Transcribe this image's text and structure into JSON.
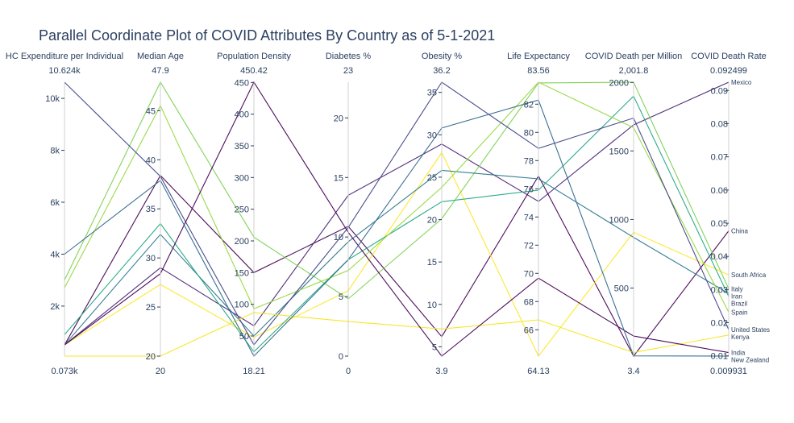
{
  "title": "Parallel Coordinate Plot of COVID Attributes By Country as of 5-1-2021",
  "chart_data": {
    "type": "parallel_coordinates",
    "axes": [
      {
        "key": "hc",
        "label": "HC Expenditure per Individual",
        "min": 73,
        "max": 10624,
        "range_min_label": "0.073k",
        "range_max_label": "10.624k",
        "ticks": [
          {
            "v": 2000,
            "t": "2k"
          },
          {
            "v": 4000,
            "t": "4k"
          },
          {
            "v": 6000,
            "t": "6k"
          },
          {
            "v": 8000,
            "t": "8k"
          },
          {
            "v": 10000,
            "t": "10k"
          }
        ]
      },
      {
        "key": "age",
        "label": "Median Age",
        "min": 20,
        "max": 47.9,
        "range_min_label": "20",
        "range_max_label": "47.9",
        "ticks": [
          {
            "v": 20,
            "t": "20"
          },
          {
            "v": 25,
            "t": "25"
          },
          {
            "v": 30,
            "t": "30"
          },
          {
            "v": 35,
            "t": "35"
          },
          {
            "v": 40,
            "t": "40"
          },
          {
            "v": 45,
            "t": "45"
          }
        ]
      },
      {
        "key": "density",
        "label": "Population Density",
        "min": 18.21,
        "max": 450.42,
        "range_min_label": "18.21",
        "range_max_label": "450.42",
        "ticks": [
          {
            "v": 50,
            "t": "50"
          },
          {
            "v": 100,
            "t": "100"
          },
          {
            "v": 150,
            "t": "150"
          },
          {
            "v": 200,
            "t": "200"
          },
          {
            "v": 250,
            "t": "250"
          },
          {
            "v": 300,
            "t": "300"
          },
          {
            "v": 350,
            "t": "350"
          },
          {
            "v": 400,
            "t": "400"
          },
          {
            "v": 450,
            "t": "450"
          }
        ]
      },
      {
        "key": "diabetes",
        "label": "Diabetes %",
        "min": 0,
        "max": 23,
        "range_min_label": "0",
        "range_max_label": "23",
        "ticks": [
          {
            "v": 0,
            "t": "0"
          },
          {
            "v": 5,
            "t": "5"
          },
          {
            "v": 10,
            "t": "10"
          },
          {
            "v": 15,
            "t": "15"
          },
          {
            "v": 20,
            "t": "20"
          }
        ]
      },
      {
        "key": "obesity",
        "label": "Obesity %",
        "min": 3.9,
        "max": 36.2,
        "range_min_label": "3.9",
        "range_max_label": "36.2",
        "ticks": [
          {
            "v": 5,
            "t": "5"
          },
          {
            "v": 10,
            "t": "10"
          },
          {
            "v": 15,
            "t": "15"
          },
          {
            "v": 20,
            "t": "20"
          },
          {
            "v": 25,
            "t": "25"
          },
          {
            "v": 30,
            "t": "30"
          },
          {
            "v": 35,
            "t": "35"
          }
        ]
      },
      {
        "key": "life",
        "label": "Life Expectancy",
        "min": 64.13,
        "max": 83.56,
        "range_min_label": "64.13",
        "range_max_label": "83.56",
        "ticks": [
          {
            "v": 66,
            "t": "66"
          },
          {
            "v": 68,
            "t": "68"
          },
          {
            "v": 70,
            "t": "70"
          },
          {
            "v": 72,
            "t": "72"
          },
          {
            "v": 74,
            "t": "74"
          },
          {
            "v": 76,
            "t": "76"
          },
          {
            "v": 78,
            "t": "78"
          },
          {
            "v": 80,
            "t": "80"
          },
          {
            "v": 82,
            "t": "82"
          }
        ]
      },
      {
        "key": "deathpm",
        "label": "COVID Death per Million",
        "min": 3.4,
        "max": 2001.8,
        "range_min_label": "3.4",
        "range_max_label": "2,001.8",
        "ticks": [
          {
            "v": 500,
            "t": "500"
          },
          {
            "v": 1000,
            "t": "1000"
          },
          {
            "v": 1500,
            "t": "1500"
          },
          {
            "v": 2000,
            "t": "2000"
          }
        ]
      },
      {
        "key": "deathrate",
        "label": "COVID Death Rate",
        "min": 0.009931,
        "max": 0.092499,
        "range_min_label": "0.009931",
        "range_max_label": "0.092499",
        "ticks": [
          {
            "v": 0.01,
            "t": "0.01"
          },
          {
            "v": 0.02,
            "t": "0.02"
          },
          {
            "v": 0.03,
            "t": "0.03"
          },
          {
            "v": 0.04,
            "t": "0.04"
          },
          {
            "v": 0.05,
            "t": "0.05"
          },
          {
            "v": 0.06,
            "t": "0.06"
          },
          {
            "v": 0.07,
            "t": "0.07"
          },
          {
            "v": 0.08,
            "t": "0.08"
          },
          {
            "v": 0.09,
            "t": "0.09"
          }
        ]
      }
    ],
    "series": [
      {
        "name": "Mexico",
        "color": "#482475",
        "values": {
          "hc": 500,
          "age": 29,
          "density": 66,
          "diabetes": 13.5,
          "obesity": 28.9,
          "life": 75.1,
          "deathpm": 1690,
          "deathrate": 0.0925
        }
      },
      {
        "name": "China",
        "color": "#440154",
        "values": {
          "hc": 500,
          "age": 38.4,
          "density": 150,
          "diabetes": 10.9,
          "obesity": 6.2,
          "life": 76.9,
          "deathpm": 3.4,
          "deathrate": 0.0477
        }
      },
      {
        "name": "South Africa",
        "color": "#fde725",
        "values": {
          "hc": 500,
          "age": 27.3,
          "density": 48,
          "diabetes": 5.5,
          "obesity": 27.9,
          "life": 64.13,
          "deathpm": 907,
          "deathrate": 0.0344
        }
      },
      {
        "name": "Italy",
        "color": "#7ad151",
        "values": {
          "hc": 3000,
          "age": 47.9,
          "density": 206,
          "diabetes": 4.8,
          "obesity": 20.1,
          "life": 83.51,
          "deathpm": 2001.8,
          "deathrate": 0.0302
        }
      },
      {
        "name": "Iran",
        "color": "#2a788e",
        "values": {
          "hc": 500,
          "age": 32.4,
          "density": 50,
          "diabetes": 9.6,
          "obesity": 25.8,
          "life": 76.7,
          "deathpm": 870,
          "deathrate": 0.0288
        }
      },
      {
        "name": "Brazil",
        "color": "#22a884",
        "values": {
          "hc": 900,
          "age": 33.5,
          "density": 25,
          "diabetes": 8.1,
          "obesity": 22.1,
          "life": 75.9,
          "deathpm": 1900,
          "deathrate": 0.0279
        }
      },
      {
        "name": "Spain",
        "color": "#95d840",
        "values": {
          "hc": 2700,
          "age": 45.5,
          "density": 93,
          "diabetes": 7.2,
          "obesity": 23.8,
          "life": 83.56,
          "deathpm": 1670,
          "deathrate": 0.0232
        }
      },
      {
        "name": "United States",
        "color": "#414487",
        "values": {
          "hc": 10624,
          "age": 38.3,
          "density": 36,
          "diabetes": 10.8,
          "obesity": 36.2,
          "life": 78.86,
          "deathpm": 1740,
          "deathrate": 0.0179
        }
      },
      {
        "name": "Kenya",
        "color": "#f5e61f",
        "values": {
          "hc": 73,
          "age": 20,
          "density": 87,
          "diabetes": 2.9,
          "obesity": 7.1,
          "life": 66.7,
          "deathpm": 30,
          "deathrate": 0.0163
        }
      },
      {
        "name": "India",
        "color": "#440154",
        "values": {
          "hc": 500,
          "age": 28.4,
          "density": 450.42,
          "diabetes": 10.4,
          "obesity": 3.9,
          "life": 69.66,
          "deathpm": 150,
          "deathrate": 0.011
        }
      },
      {
        "name": "New Zealand",
        "color": "#31688e",
        "values": {
          "hc": 4000,
          "age": 37.9,
          "density": 18.21,
          "diabetes": 8.1,
          "obesity": 30.8,
          "life": 82.29,
          "deathpm": 5.2,
          "deathrate": 0.009931
        }
      }
    ]
  }
}
